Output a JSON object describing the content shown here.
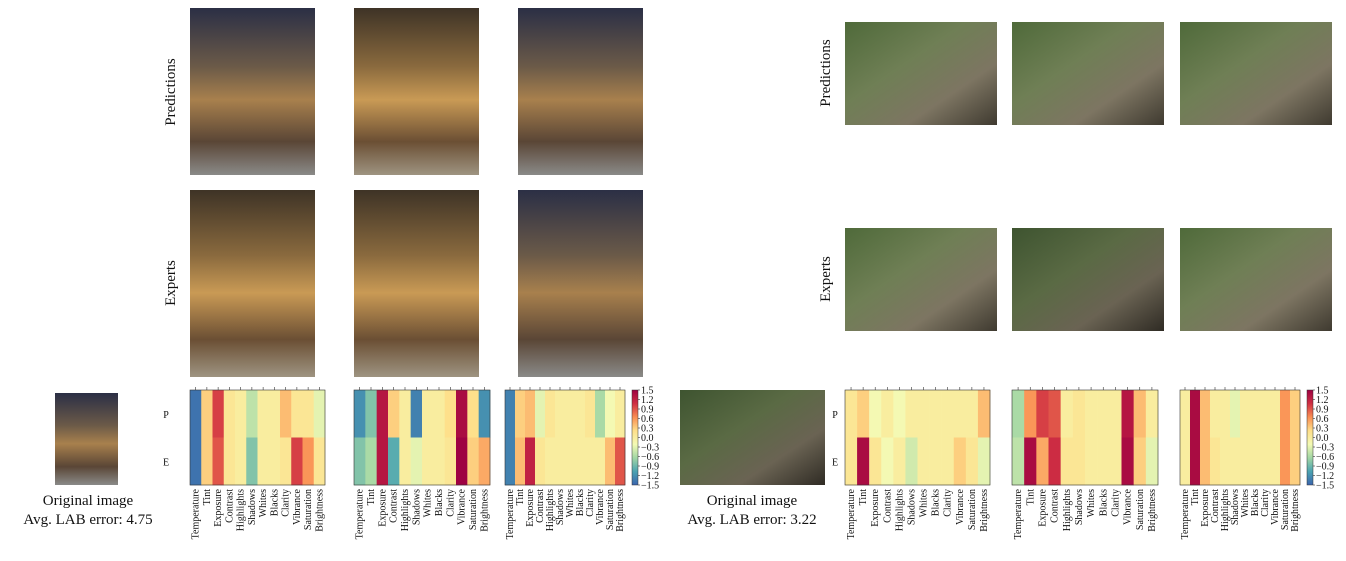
{
  "panels": [
    {
      "row_labels": [
        "Predictions",
        "Experts"
      ],
      "caption": "Original image",
      "error_label": "Avg. LAB error: 4.75",
      "heatmaps": [
        {
          "values": [
            [
              -1.4,
              0.3,
              1.0,
              0.1,
              0.0,
              -0.5,
              0.0,
              0.0,
              0.4,
              0.1,
              0.1,
              -0.3
            ],
            [
              -1.4,
              0.3,
              0.9,
              0.1,
              0.0,
              -0.8,
              0.0,
              0.0,
              0.1,
              1.0,
              0.6,
              0.1
            ]
          ]
        },
        {
          "values": [
            [
              -1.2,
              -0.8,
              1.3,
              0.3,
              0.0,
              -1.3,
              0.0,
              0.0,
              0.2,
              1.4,
              0.2,
              -1.2
            ],
            [
              -0.8,
              -0.6,
              1.3,
              -1.0,
              0.0,
              -0.3,
              0.0,
              0.0,
              0.1,
              1.5,
              0.3,
              0.5
            ]
          ]
        },
        {
          "values": [
            [
              -1.3,
              0.3,
              0.4,
              -0.3,
              0.1,
              0.0,
              0.0,
              0.0,
              0.1,
              -0.6,
              -0.2,
              0.0
            ],
            [
              -1.3,
              0.4,
              1.2,
              0.1,
              0.0,
              0.0,
              0.0,
              0.0,
              0.0,
              0.0,
              0.4,
              0.9
            ]
          ]
        }
      ]
    },
    {
      "row_labels": [
        "Predictions",
        "Experts"
      ],
      "caption": "Original image",
      "error_label": "Avg. LAB error: 3.22",
      "heatmaps": [
        {
          "values": [
            [
              0.1,
              0.3,
              -0.2,
              0.0,
              -0.2,
              0.0,
              0.0,
              0.0,
              0.0,
              0.0,
              0.0,
              0.4
            ],
            [
              0.1,
              1.4,
              0.1,
              -0.2,
              0.0,
              -0.4,
              0.0,
              0.0,
              0.0,
              0.3,
              0.1,
              -0.3
            ]
          ]
        },
        {
          "values": [
            [
              -0.6,
              0.6,
              1.0,
              0.9,
              0.0,
              0.1,
              0.0,
              0.0,
              0.0,
              1.3,
              0.4,
              0.0
            ],
            [
              -0.5,
              1.4,
              0.5,
              1.1,
              0.1,
              0.1,
              0.0,
              0.0,
              0.0,
              1.4,
              0.3,
              -0.3
            ]
          ]
        },
        {
          "values": [
            [
              0.0,
              1.4,
              0.4,
              0.0,
              0.0,
              -0.3,
              0.0,
              0.0,
              0.0,
              0.0,
              0.6,
              0.3
            ],
            [
              0.0,
              1.4,
              0.4,
              0.1,
              0.0,
              0.0,
              0.0,
              0.0,
              0.0,
              0.0,
              0.6,
              0.3
            ]
          ]
        }
      ]
    }
  ],
  "heatmap_rows": [
    "P",
    "E"
  ],
  "parameters": [
    "Temperature",
    "Tint",
    "Exposure",
    "Contrast",
    "Highlights",
    "Shadows",
    "Whites",
    "Blacks",
    "Clarity",
    "Vibrance",
    "Saturation",
    "Brightness"
  ],
  "colorbar": {
    "range": [
      -1.5,
      1.5
    ],
    "ticks": [
      1.5,
      1.2,
      0.9,
      0.6,
      0.3,
      {
        "value": 0,
        "label": "0.0"
      },
      {
        "value": -0.3,
        "label": "−0.3"
      },
      {
        "value": -0.6,
        "label": "−0.6"
      },
      {
        "value": -0.9,
        "label": "−0.9"
      },
      {
        "value": -1.2,
        "label": "−1.2"
      },
      {
        "value": -1.5,
        "label": "−1.5"
      }
    ],
    "colormap": [
      "#3a64ad",
      "#4ba3b1",
      "#a2d6a4",
      "#f4fab4",
      "#fedf8a",
      "#f98e52",
      "#cf2f43",
      "#9e0142"
    ]
  }
}
